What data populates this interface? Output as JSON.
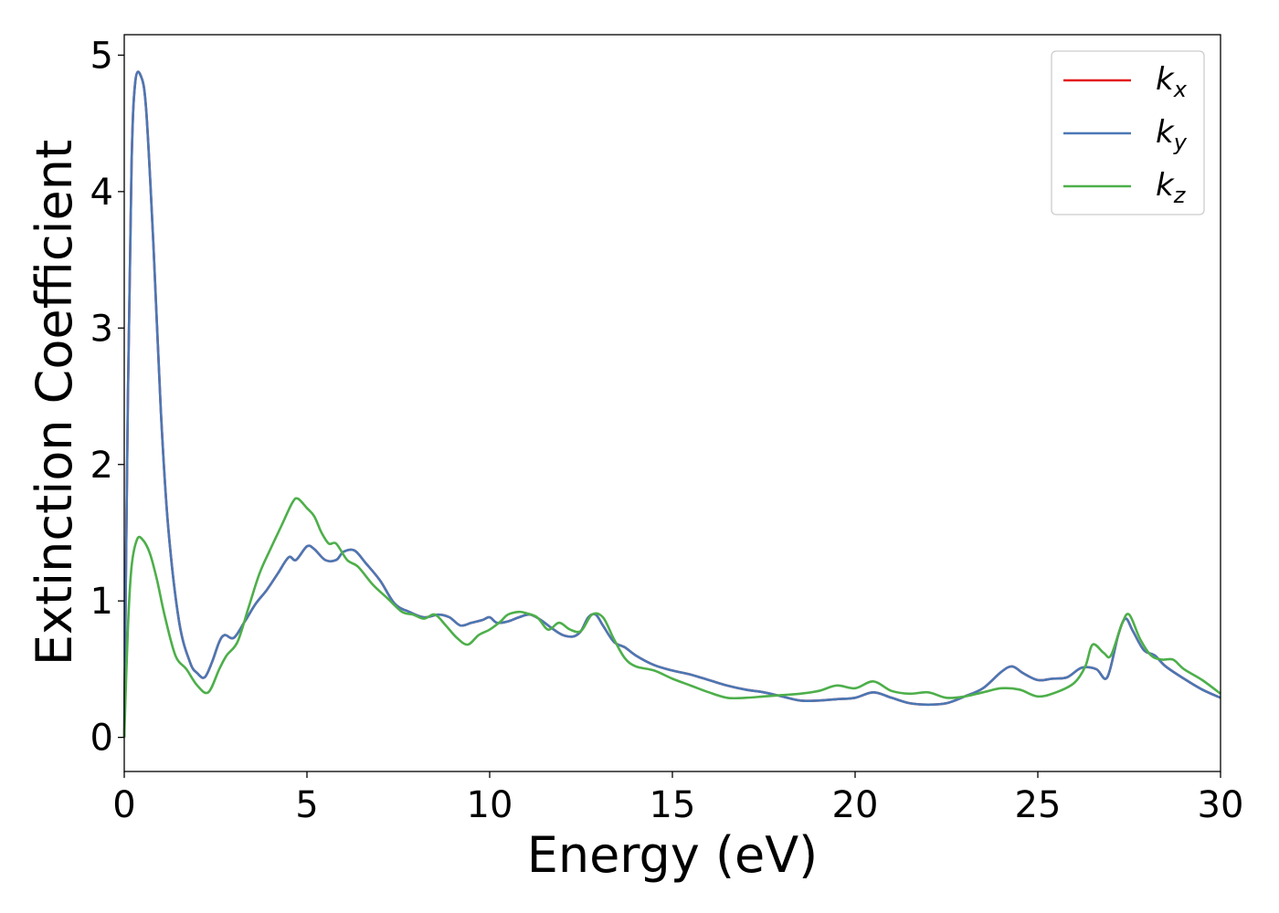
{
  "chart_data": {
    "type": "line",
    "title": "",
    "xlabel": "Energy (eV)",
    "ylabel": "Extinction Coefficient",
    "xlim": [
      0,
      30
    ],
    "ylim": [
      -0.25,
      5.15
    ],
    "xticks": [
      "0",
      "5",
      "10",
      "15",
      "20",
      "25",
      "30"
    ],
    "yticks": [
      "0",
      "1",
      "2",
      "3",
      "4",
      "5"
    ],
    "grid": false,
    "legend_position": "top-right",
    "series": [
      {
        "name": "k_x",
        "label_base": "k",
        "label_sub": "x",
        "color": "#e41a1c",
        "x": [
          0,
          0.1,
          0.2,
          0.3,
          0.45,
          0.6,
          0.8,
          1.0,
          1.2,
          1.5,
          1.8,
          2.0,
          2.2,
          2.4,
          2.6,
          2.75,
          3.0,
          3.3,
          3.6,
          3.9,
          4.2,
          4.5,
          4.7,
          5.0,
          5.2,
          5.5,
          5.8,
          6.0,
          6.3,
          6.6,
          7.0,
          7.4,
          7.8,
          8.2,
          8.6,
          8.9,
          9.2,
          9.5,
          9.8,
          10.0,
          10.2,
          10.5,
          10.8,
          11.1,
          11.4,
          11.7,
          12.0,
          12.3,
          12.5,
          12.7,
          12.9,
          13.1,
          13.4,
          13.7,
          14.0,
          14.5,
          15.0,
          15.5,
          16.0,
          16.5,
          17.0,
          17.5,
          18.0,
          18.5,
          19.0,
          19.5,
          20.0,
          20.5,
          21.0,
          21.5,
          22.0,
          22.5,
          23.0,
          23.5,
          24.0,
          24.3,
          24.6,
          25.0,
          25.4,
          25.8,
          26.2,
          26.6,
          26.9,
          27.2,
          27.4,
          27.6,
          27.9,
          28.2,
          28.5,
          29.0,
          29.5,
          30.0
        ],
        "y": [
          0,
          2.5,
          4.2,
          4.8,
          4.85,
          4.6,
          3.6,
          2.4,
          1.55,
          0.85,
          0.55,
          0.47,
          0.44,
          0.55,
          0.7,
          0.75,
          0.73,
          0.85,
          0.98,
          1.08,
          1.2,
          1.32,
          1.3,
          1.4,
          1.38,
          1.3,
          1.3,
          1.36,
          1.37,
          1.28,
          1.15,
          0.98,
          0.92,
          0.88,
          0.9,
          0.88,
          0.82,
          0.84,
          0.86,
          0.88,
          0.84,
          0.85,
          0.88,
          0.9,
          0.86,
          0.8,
          0.75,
          0.74,
          0.78,
          0.88,
          0.9,
          0.82,
          0.7,
          0.66,
          0.6,
          0.53,
          0.49,
          0.46,
          0.42,
          0.38,
          0.35,
          0.33,
          0.3,
          0.27,
          0.27,
          0.28,
          0.29,
          0.33,
          0.29,
          0.25,
          0.24,
          0.25,
          0.3,
          0.36,
          0.48,
          0.52,
          0.47,
          0.42,
          0.43,
          0.44,
          0.51,
          0.5,
          0.44,
          0.75,
          0.87,
          0.78,
          0.64,
          0.6,
          0.52,
          0.43,
          0.35,
          0.29
        ]
      },
      {
        "name": "k_y",
        "label_base": "k",
        "label_sub": "y",
        "color": "#4a78b5",
        "x": [
          0,
          0.1,
          0.2,
          0.3,
          0.45,
          0.6,
          0.8,
          1.0,
          1.2,
          1.5,
          1.8,
          2.0,
          2.2,
          2.4,
          2.6,
          2.75,
          3.0,
          3.3,
          3.6,
          3.9,
          4.2,
          4.5,
          4.7,
          5.0,
          5.2,
          5.5,
          5.8,
          6.0,
          6.3,
          6.6,
          7.0,
          7.4,
          7.8,
          8.2,
          8.6,
          8.9,
          9.2,
          9.5,
          9.8,
          10.0,
          10.2,
          10.5,
          10.8,
          11.1,
          11.4,
          11.7,
          12.0,
          12.3,
          12.5,
          12.7,
          12.9,
          13.1,
          13.4,
          13.7,
          14.0,
          14.5,
          15.0,
          15.5,
          16.0,
          16.5,
          17.0,
          17.5,
          18.0,
          18.5,
          19.0,
          19.5,
          20.0,
          20.5,
          21.0,
          21.5,
          22.0,
          22.5,
          23.0,
          23.5,
          24.0,
          24.3,
          24.6,
          25.0,
          25.4,
          25.8,
          26.2,
          26.6,
          26.9,
          27.2,
          27.4,
          27.6,
          27.9,
          28.2,
          28.5,
          29.0,
          29.5,
          30.0
        ],
        "y": [
          0,
          2.5,
          4.2,
          4.8,
          4.85,
          4.6,
          3.6,
          2.4,
          1.55,
          0.85,
          0.55,
          0.47,
          0.44,
          0.55,
          0.7,
          0.75,
          0.73,
          0.85,
          0.98,
          1.08,
          1.2,
          1.32,
          1.3,
          1.4,
          1.38,
          1.3,
          1.3,
          1.36,
          1.37,
          1.28,
          1.15,
          0.98,
          0.92,
          0.88,
          0.9,
          0.88,
          0.82,
          0.84,
          0.86,
          0.88,
          0.84,
          0.85,
          0.88,
          0.9,
          0.86,
          0.8,
          0.75,
          0.74,
          0.78,
          0.88,
          0.9,
          0.82,
          0.7,
          0.66,
          0.6,
          0.53,
          0.49,
          0.46,
          0.42,
          0.38,
          0.35,
          0.33,
          0.3,
          0.27,
          0.27,
          0.28,
          0.29,
          0.33,
          0.29,
          0.25,
          0.24,
          0.25,
          0.3,
          0.36,
          0.48,
          0.52,
          0.47,
          0.42,
          0.43,
          0.44,
          0.51,
          0.5,
          0.44,
          0.75,
          0.87,
          0.78,
          0.64,
          0.6,
          0.52,
          0.43,
          0.35,
          0.29
        ]
      },
      {
        "name": "k_z",
        "label_base": "k",
        "label_sub": "z",
        "color": "#4daf4a",
        "x": [
          0,
          0.1,
          0.2,
          0.35,
          0.5,
          0.7,
          0.9,
          1.1,
          1.4,
          1.7,
          2.0,
          2.3,
          2.6,
          2.8,
          3.1,
          3.4,
          3.7,
          4.0,
          4.3,
          4.6,
          4.75,
          5.0,
          5.2,
          5.4,
          5.6,
          5.8,
          6.1,
          6.4,
          6.8,
          7.2,
          7.6,
          7.9,
          8.2,
          8.5,
          8.8,
          9.1,
          9.4,
          9.7,
          10.0,
          10.3,
          10.5,
          10.8,
          11.0,
          11.3,
          11.6,
          11.9,
          12.2,
          12.5,
          12.8,
          13.1,
          13.4,
          13.7,
          14.0,
          14.5,
          15.0,
          15.5,
          16.0,
          16.5,
          17.0,
          17.5,
          18.0,
          18.5,
          19.0,
          19.5,
          20.0,
          20.5,
          21.0,
          21.5,
          22.0,
          22.5,
          23.0,
          23.5,
          24.0,
          24.5,
          25.0,
          25.5,
          26.0,
          26.3,
          26.5,
          26.8,
          27.0,
          27.3,
          27.5,
          27.8,
          28.1,
          28.4,
          28.7,
          29.0,
          29.5,
          30.0
        ],
        "y": [
          0,
          0.8,
          1.25,
          1.45,
          1.45,
          1.35,
          1.15,
          0.9,
          0.6,
          0.5,
          0.38,
          0.33,
          0.5,
          0.6,
          0.7,
          0.95,
          1.2,
          1.38,
          1.55,
          1.72,
          1.75,
          1.68,
          1.62,
          1.5,
          1.42,
          1.42,
          1.3,
          1.25,
          1.12,
          1.02,
          0.92,
          0.9,
          0.87,
          0.9,
          0.82,
          0.73,
          0.68,
          0.75,
          0.79,
          0.85,
          0.9,
          0.92,
          0.91,
          0.88,
          0.79,
          0.84,
          0.79,
          0.78,
          0.9,
          0.88,
          0.72,
          0.58,
          0.52,
          0.49,
          0.43,
          0.38,
          0.33,
          0.29,
          0.29,
          0.3,
          0.31,
          0.32,
          0.34,
          0.38,
          0.36,
          0.41,
          0.34,
          0.32,
          0.33,
          0.29,
          0.3,
          0.33,
          0.36,
          0.35,
          0.3,
          0.33,
          0.4,
          0.52,
          0.68,
          0.62,
          0.6,
          0.83,
          0.9,
          0.72,
          0.6,
          0.57,
          0.57,
          0.5,
          0.42,
          0.32
        ]
      }
    ]
  }
}
